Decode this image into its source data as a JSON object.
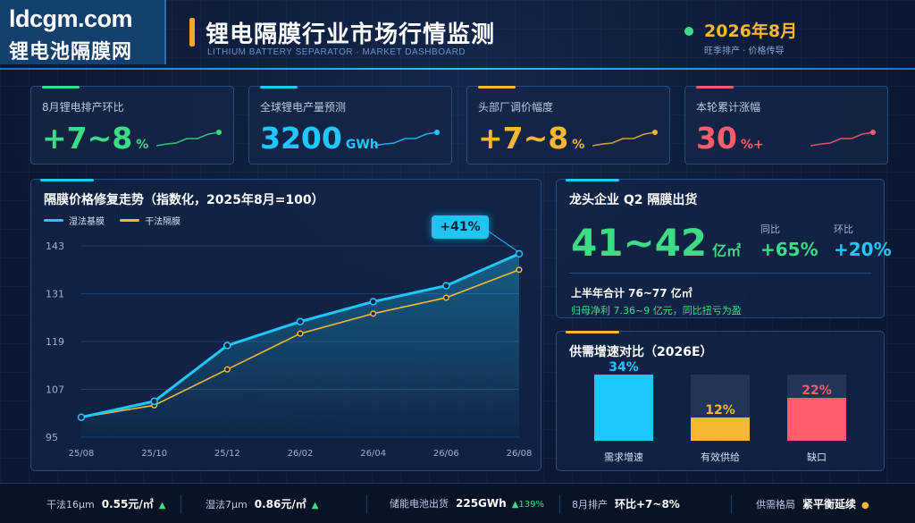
{
  "brand": {
    "domain": "ldcgm.com",
    "name": "锂电池隔膜网"
  },
  "header": {
    "title": "锂电隔膜行业市场行情监测",
    "subtitle": "LITHIUM BATTERY SEPARATOR · MARKET DASHBOARD",
    "date": "2026年8月",
    "date_note": "旺季排产 · 价格传导"
  },
  "kpis": [
    {
      "label": "8月锂电排产环比",
      "value": "+7~8",
      "unit": "%",
      "color": "#3ddc84"
    },
    {
      "label": "全球锂电产量预测",
      "value": "3200",
      "unit": "GWh",
      "color": "#1ec8ff"
    },
    {
      "label": "头部厂调价幅度",
      "value": "+7~8",
      "unit": "%",
      "color": "#f5b82e"
    },
    {
      "label": "本轮累计涨幅",
      "value": "30",
      "unit": "%+",
      "color": "#ff5c6c"
    }
  ],
  "price_chart": {
    "title": "隔膜价格修复走势（指数化，2025年8月=100）",
    "badge": "+41%",
    "chart_data": {
      "type": "line",
      "title": "隔膜价格修复走势（指数化，2025年8月=100）",
      "x": [
        "25/08",
        "25/10",
        "25/12",
        "26/02",
        "26/04",
        "26/06",
        "26/08"
      ],
      "y_ticks": [
        95,
        107,
        119,
        131,
        143
      ],
      "ylim": [
        95,
        143
      ],
      "grid": true,
      "legend_position": "top-left",
      "series": [
        {
          "name": "湿法基膜",
          "color": "#1ec8ff",
          "values": [
            100,
            104,
            118,
            124,
            129,
            133,
            141
          ]
        },
        {
          "name": "干法隔膜",
          "color": "#f5b82e",
          "values": [
            100,
            103,
            112,
            121,
            126,
            130,
            137
          ]
        }
      ]
    }
  },
  "shipment": {
    "title": "龙头企业 Q2 隔膜出货",
    "value": "41~42",
    "unit": "亿㎡",
    "yoy_label": "同比",
    "yoy_value": "+65%",
    "qoq_label": "环比",
    "qoq_value": "+20%",
    "half_year": "上半年合计 76~77 亿㎡",
    "profit": "归母净利 7.36~9 亿元，同比扭亏为盈"
  },
  "supply_demand": {
    "title": "供需增速对比（2026E）",
    "chart_data": {
      "type": "bar",
      "title": "供需增速对比（2026E）",
      "categories": [
        "需求增速",
        "有效供给",
        "缺口"
      ],
      "values": [
        34,
        12,
        22
      ],
      "labels": [
        "34%",
        "12%",
        "22%"
      ],
      "colors": [
        "#1ec8ff",
        "#f5b82e",
        "#ff5c6c"
      ],
      "ylim": [
        0,
        34
      ]
    }
  },
  "footer": [
    {
      "label": "干法16μm",
      "value": "0.55元/㎡",
      "trend": "▲"
    },
    {
      "label": "湿法7μm",
      "value": "0.86元/㎡",
      "trend": "▲"
    },
    {
      "label": "储能电池出货",
      "value": "225GWh",
      "trend": "▲139%"
    },
    {
      "label": "8月排产",
      "value": "环比+7~8%",
      "trend": ""
    },
    {
      "label": "供需格局",
      "value": "紧平衡延续",
      "trend": "●"
    }
  ]
}
